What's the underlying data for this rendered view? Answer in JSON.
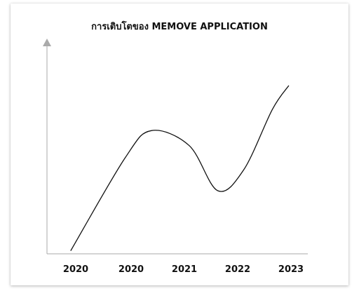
{
  "chart_data": {
    "type": "line",
    "title": "การเติบโตของ MEMOVE APPLICATION",
    "xlabel": "",
    "ylabel": "",
    "categories": [
      "2020",
      "2020",
      "2021",
      "2022",
      "2023"
    ],
    "x": [
      0.0,
      0.23,
      0.34,
      0.5,
      0.62,
      0.73,
      0.85,
      0.92
    ],
    "values": [
      2,
      64,
      82,
      72,
      42,
      56,
      96,
      112
    ],
    "ylim": [
      0,
      140
    ],
    "xlim": [
      -0.1,
      1.0
    ],
    "grid": false,
    "legend": "none",
    "line_color": "#111111",
    "axis_color": "#aaaaaa"
  }
}
